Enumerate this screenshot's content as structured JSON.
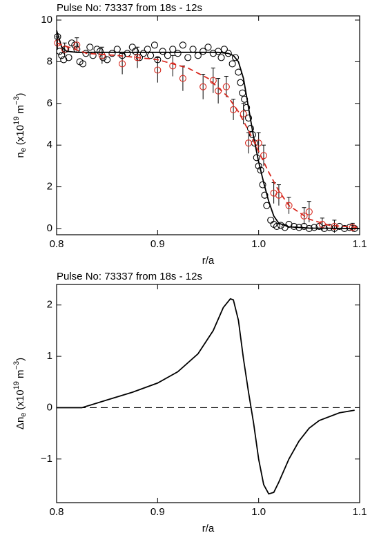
{
  "chart_data": [
    {
      "type": "line",
      "title": "Pulse No: 73337 from 18s - 12s",
      "xlabel": "r/a",
      "ylabel": [
        "n",
        "e",
        "(x10",
        "19",
        " m",
        "−3",
        ")"
      ],
      "xlim": [
        0.8,
        1.1
      ],
      "xticks": [
        0.8,
        0.9,
        {
          "value": 1.0,
          "label": "1.0"
        },
        1.1
      ],
      "ylim": [
        -0.3,
        10.2
      ],
      "yticks": [
        0,
        2,
        4,
        6,
        8,
        10
      ],
      "series": [
        {
          "type": "scatter",
          "color": "#000000",
          "x": [
            0.801,
            0.803,
            0.805,
            0.807,
            0.809,
            0.812,
            0.815,
            0.818,
            0.82,
            0.823,
            0.826,
            0.829,
            0.833,
            0.836,
            0.84,
            0.843,
            0.846,
            0.85,
            0.855,
            0.86,
            0.865,
            0.87,
            0.875,
            0.878,
            0.882,
            0.886,
            0.89,
            0.893,
            0.897,
            0.9,
            0.905,
            0.91,
            0.915,
            0.92,
            0.925,
            0.93,
            0.935,
            0.94,
            0.945,
            0.95,
            0.955,
            0.96,
            0.963,
            0.966,
            0.97,
            0.974,
            0.977,
            0.98,
            0.982,
            0.984,
            0.986,
            0.988,
            0.99,
            0.992,
            0.994,
            0.996,
            0.998,
            1.0,
            1.002,
            1.004,
            1.006,
            1.008,
            1.012,
            1.015,
            1.018,
            1.022,
            1.026,
            1.03,
            1.035,
            1.04,
            1.045,
            1.05,
            1.055,
            1.06,
            1.065,
            1.07,
            1.075,
            1.08,
            1.085,
            1.09,
            1.095
          ],
          "y": [
            9.2,
            8.5,
            8.3,
            8.1,
            8.6,
            8.2,
            8.9,
            8.8,
            8.6,
            8.0,
            7.9,
            8.4,
            8.7,
            8.3,
            8.6,
            8.5,
            8.2,
            8.1,
            8.4,
            8.6,
            8.3,
            8.4,
            8.7,
            8.5,
            8.2,
            8.4,
            8.6,
            8.3,
            8.8,
            8.1,
            8.5,
            8.3,
            8.6,
            8.4,
            8.8,
            8.2,
            8.6,
            8.3,
            8.5,
            8.7,
            8.4,
            8.5,
            8.2,
            8.6,
            8.4,
            7.9,
            8.2,
            7.5,
            7.0,
            6.5,
            6.2,
            5.8,
            5.3,
            4.8,
            4.5,
            4.1,
            3.4,
            3.0,
            2.8,
            2.1,
            1.6,
            1.1,
            0.4,
            0.2,
            0.1,
            0.15,
            0.05,
            0.2,
            0.1,
            0.05,
            0.1,
            0.0,
            0.05,
            0.1,
            0.0,
            0.05,
            0.0,
            0.1,
            0.0,
            0.05,
            0.0
          ]
        },
        {
          "type": "scatter",
          "color": "#d8281e",
          "x": [
            0.801,
            0.808,
            0.82,
            0.845,
            0.865,
            0.88,
            0.9,
            0.915,
            0.925,
            0.945,
            0.955,
            0.96,
            0.968,
            0.975,
            0.985,
            0.99,
            1.0,
            1.005,
            1.015,
            1.02,
            1.03,
            1.045,
            1.05,
            1.063,
            1.075,
            1.093
          ],
          "y": [
            8.9,
            8.6,
            8.8,
            8.3,
            7.9,
            8.2,
            7.6,
            7.8,
            7.2,
            6.8,
            7.1,
            6.6,
            6.8,
            5.7,
            5.5,
            4.1,
            4.1,
            3.5,
            1.7,
            1.6,
            1.1,
            0.6,
            0.8,
            0.2,
            0.1,
            0.05
          ],
          "errors": [
            0.3,
            0.3,
            0.35,
            0.4,
            0.5,
            0.5,
            0.6,
            0.5,
            0.6,
            0.6,
            0.6,
            0.6,
            0.5,
            0.5,
            0.5,
            0.5,
            0.5,
            0.5,
            0.5,
            0.5,
            0.4,
            0.4,
            0.5,
            0.3,
            0.3,
            0.2
          ]
        },
        {
          "type": "line",
          "color": "#000000",
          "dash": false,
          "x": [
            0.8,
            0.805,
            0.81,
            0.82,
            0.9,
            0.96,
            0.97,
            0.975,
            0.98,
            0.985,
            0.99,
            0.995,
            1.0,
            1.005,
            1.01,
            1.015,
            1.02,
            1.03,
            1.05,
            1.1
          ],
          "y": [
            9.5,
            8.7,
            8.5,
            8.45,
            8.45,
            8.45,
            8.4,
            8.3,
            8.0,
            7.2,
            5.8,
            4.4,
            3.2,
            2.2,
            1.3,
            0.6,
            0.25,
            0.08,
            0.02,
            0.0
          ]
        },
        {
          "type": "line",
          "color": "#d8281e",
          "dash": true,
          "x": [
            0.8,
            0.83,
            0.86,
            0.9,
            0.93,
            0.95,
            0.97,
            0.98,
            0.99,
            1.0,
            1.01,
            1.02,
            1.03,
            1.05,
            1.07,
            1.1
          ],
          "y": [
            8.9,
            8.4,
            8.3,
            8.1,
            7.7,
            7.2,
            6.3,
            5.6,
            4.7,
            3.7,
            2.7,
            1.8,
            1.1,
            0.45,
            0.15,
            0.05
          ]
        }
      ]
    },
    {
      "type": "line",
      "title": "Pulse No: 73337 from 18s - 12s",
      "xlabel": "r/a",
      "ylabel": [
        "Δn",
        "e",
        "(x10",
        "19",
        " m",
        "−3",
        ")"
      ],
      "xlim": [
        0.8,
        1.1
      ],
      "xticks": [
        0.8,
        0.9,
        {
          "value": 1.0,
          "label": "1.0"
        },
        1.1
      ],
      "ylim": [
        -1.85,
        2.4
      ],
      "yticks": [
        {
          "value": -1,
          "label": "−1"
        },
        0,
        1,
        2
      ],
      "hline": 0,
      "series": [
        {
          "type": "line",
          "color": "#000000",
          "dash": false,
          "x": [
            0.8,
            0.825,
            0.85,
            0.875,
            0.9,
            0.92,
            0.94,
            0.955,
            0.965,
            0.972,
            0.975,
            0.98,
            0.985,
            0.99,
            0.995,
            1.0,
            1.005,
            1.01,
            1.015,
            1.02,
            1.03,
            1.04,
            1.05,
            1.06,
            1.08,
            1.095
          ],
          "y": [
            0,
            0,
            0.15,
            0.3,
            0.48,
            0.7,
            1.05,
            1.5,
            1.95,
            2.12,
            2.1,
            1.7,
            0.95,
            0.3,
            -0.3,
            -1.0,
            -1.5,
            -1.68,
            -1.65,
            -1.45,
            -1.0,
            -0.65,
            -0.4,
            -0.25,
            -0.1,
            -0.05
          ]
        }
      ]
    }
  ]
}
